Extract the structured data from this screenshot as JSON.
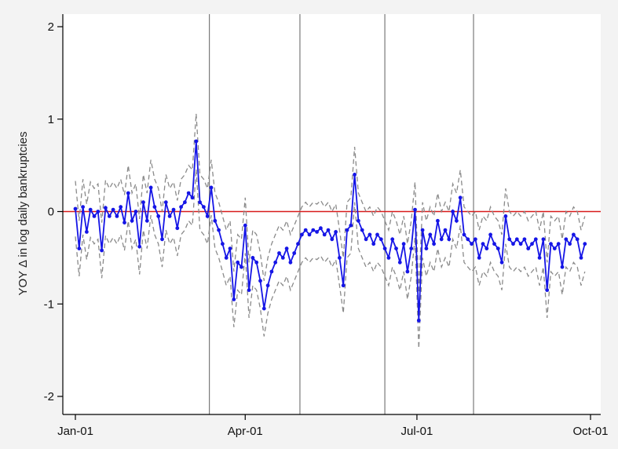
{
  "chart_data": {
    "type": "line",
    "title": "",
    "xlabel": "",
    "ylabel": "YOY Δ in log daily bankruptcies",
    "xlim": [
      "2001-01-01",
      "2001-10-01"
    ],
    "ylim": [
      -2.2,
      2.2
    ],
    "x_ticks": [
      {
        "date": "2001-01-01",
        "label": "Jan-01"
      },
      {
        "date": "2001-04-01",
        "label": "Apr-01"
      },
      {
        "date": "2001-07-01",
        "label": "Jul-01"
      },
      {
        "date": "2001-10-01",
        "label": "Oct-01"
      }
    ],
    "y_ticks": [
      {
        "value": 2,
        "label": "2"
      },
      {
        "value": 1,
        "label": "1"
      },
      {
        "value": 0,
        "label": "0"
      },
      {
        "value": -1,
        "label": "-1"
      },
      {
        "value": -2,
        "label": "-2"
      }
    ],
    "reference_line": {
      "value": 0,
      "color": "#d81b1b"
    },
    "vertical_lines": [
      "2001-03-13",
      "2001-04-30",
      "2001-06-14",
      "2001-07-31"
    ],
    "series": [
      {
        "color": "#1515e6",
        "style": "solid with circle markers",
        "points": [
          [
            "2001-01-01",
            0.03
          ],
          [
            "2001-01-03",
            -0.4
          ],
          [
            "2001-01-05",
            0.05
          ],
          [
            "2001-01-07",
            -0.22
          ],
          [
            "2001-01-09",
            0.02
          ],
          [
            "2001-01-11",
            -0.05
          ],
          [
            "2001-01-13",
            0.0
          ],
          [
            "2001-01-15",
            -0.42
          ],
          [
            "2001-01-17",
            0.04
          ],
          [
            "2001-01-19",
            -0.05
          ],
          [
            "2001-01-21",
            0.02
          ],
          [
            "2001-01-23",
            -0.05
          ],
          [
            "2001-01-25",
            0.05
          ],
          [
            "2001-01-27",
            -0.12
          ],
          [
            "2001-01-29",
            0.2
          ],
          [
            "2001-01-31",
            -0.1
          ],
          [
            "2001-02-02",
            0.0
          ],
          [
            "2001-02-04",
            -0.38
          ],
          [
            "2001-02-06",
            0.1
          ],
          [
            "2001-02-08",
            -0.1
          ],
          [
            "2001-02-10",
            0.26
          ],
          [
            "2001-02-12",
            0.05
          ],
          [
            "2001-02-14",
            -0.05
          ],
          [
            "2001-02-16",
            -0.3
          ],
          [
            "2001-02-18",
            0.1
          ],
          [
            "2001-02-20",
            -0.05
          ],
          [
            "2001-02-22",
            0.02
          ],
          [
            "2001-02-24",
            -0.18
          ],
          [
            "2001-02-26",
            0.05
          ],
          [
            "2001-02-28",
            0.1
          ],
          [
            "2001-03-02",
            0.2
          ],
          [
            "2001-03-04",
            0.15
          ],
          [
            "2001-03-06",
            0.76
          ],
          [
            "2001-03-08",
            0.1
          ],
          [
            "2001-03-10",
            0.05
          ],
          [
            "2001-03-12",
            -0.05
          ],
          [
            "2001-03-14",
            0.26
          ],
          [
            "2001-03-16",
            -0.1
          ],
          [
            "2001-03-18",
            -0.2
          ],
          [
            "2001-03-20",
            -0.35
          ],
          [
            "2001-03-22",
            -0.5
          ],
          [
            "2001-03-24",
            -0.4
          ],
          [
            "2001-03-26",
            -0.95
          ],
          [
            "2001-03-28",
            -0.55
          ],
          [
            "2001-03-30",
            -0.6
          ],
          [
            "2001-04-01",
            -0.15
          ],
          [
            "2001-04-03",
            -0.85
          ],
          [
            "2001-04-05",
            -0.5
          ],
          [
            "2001-04-07",
            -0.55
          ],
          [
            "2001-04-09",
            -0.75
          ],
          [
            "2001-04-11",
            -1.05
          ],
          [
            "2001-04-13",
            -0.8
          ],
          [
            "2001-04-15",
            -0.65
          ],
          [
            "2001-04-17",
            -0.55
          ],
          [
            "2001-04-19",
            -0.45
          ],
          [
            "2001-04-21",
            -0.5
          ],
          [
            "2001-04-23",
            -0.4
          ],
          [
            "2001-04-25",
            -0.55
          ],
          [
            "2001-04-27",
            -0.45
          ],
          [
            "2001-04-29",
            -0.35
          ],
          [
            "2001-05-01",
            -0.25
          ],
          [
            "2001-05-03",
            -0.2
          ],
          [
            "2001-05-05",
            -0.25
          ],
          [
            "2001-05-07",
            -0.2
          ],
          [
            "2001-05-09",
            -0.22
          ],
          [
            "2001-05-11",
            -0.18
          ],
          [
            "2001-05-13",
            -0.25
          ],
          [
            "2001-05-15",
            -0.2
          ],
          [
            "2001-05-17",
            -0.3
          ],
          [
            "2001-05-19",
            -0.22
          ],
          [
            "2001-05-21",
            -0.5
          ],
          [
            "2001-05-23",
            -0.8
          ],
          [
            "2001-05-25",
            -0.2
          ],
          [
            "2001-05-27",
            -0.15
          ],
          [
            "2001-05-29",
            0.4
          ],
          [
            "2001-05-31",
            -0.1
          ],
          [
            "2001-06-02",
            -0.2
          ],
          [
            "2001-06-04",
            -0.3
          ],
          [
            "2001-06-06",
            -0.25
          ],
          [
            "2001-06-08",
            -0.35
          ],
          [
            "2001-06-10",
            -0.25
          ],
          [
            "2001-06-12",
            -0.3
          ],
          [
            "2001-06-14",
            -0.4
          ],
          [
            "2001-06-16",
            -0.5
          ],
          [
            "2001-06-18",
            -0.3
          ],
          [
            "2001-06-20",
            -0.4
          ],
          [
            "2001-06-22",
            -0.55
          ],
          [
            "2001-06-24",
            -0.35
          ],
          [
            "2001-06-26",
            -0.65
          ],
          [
            "2001-06-28",
            -0.4
          ],
          [
            "2001-06-30",
            0.02
          ],
          [
            "2001-07-02",
            -1.18
          ],
          [
            "2001-07-04",
            -0.2
          ],
          [
            "2001-07-06",
            -0.4
          ],
          [
            "2001-07-08",
            -0.25
          ],
          [
            "2001-07-10",
            -0.35
          ],
          [
            "2001-07-12",
            -0.1
          ],
          [
            "2001-07-14",
            -0.3
          ],
          [
            "2001-07-16",
            -0.2
          ],
          [
            "2001-07-18",
            -0.3
          ],
          [
            "2001-07-20",
            0.0
          ],
          [
            "2001-07-22",
            -0.1
          ],
          [
            "2001-07-24",
            0.15
          ],
          [
            "2001-07-26",
            -0.25
          ],
          [
            "2001-07-28",
            -0.3
          ],
          [
            "2001-07-30",
            -0.35
          ],
          [
            "2001-08-01",
            -0.3
          ],
          [
            "2001-08-03",
            -0.5
          ],
          [
            "2001-08-05",
            -0.35
          ],
          [
            "2001-08-07",
            -0.4
          ],
          [
            "2001-08-09",
            -0.25
          ],
          [
            "2001-08-11",
            -0.35
          ],
          [
            "2001-08-13",
            -0.4
          ],
          [
            "2001-08-15",
            -0.55
          ],
          [
            "2001-08-17",
            -0.05
          ],
          [
            "2001-08-19",
            -0.3
          ],
          [
            "2001-08-21",
            -0.35
          ],
          [
            "2001-08-23",
            -0.3
          ],
          [
            "2001-08-25",
            -0.35
          ],
          [
            "2001-08-27",
            -0.3
          ],
          [
            "2001-08-29",
            -0.4
          ],
          [
            "2001-08-31",
            -0.35
          ],
          [
            "2001-09-02",
            -0.3
          ],
          [
            "2001-09-04",
            -0.5
          ],
          [
            "2001-09-06",
            -0.3
          ],
          [
            "2001-09-08",
            -0.85
          ],
          [
            "2001-09-10",
            -0.35
          ],
          [
            "2001-09-12",
            -0.4
          ],
          [
            "2001-09-14",
            -0.35
          ],
          [
            "2001-09-16",
            -0.6
          ],
          [
            "2001-09-18",
            -0.3
          ],
          [
            "2001-09-20",
            -0.35
          ],
          [
            "2001-09-22",
            -0.25
          ],
          [
            "2001-09-24",
            -0.3
          ],
          [
            "2001-09-26",
            -0.5
          ],
          [
            "2001-09-28",
            -0.35
          ]
        ]
      },
      {
        "color": "#8a8a8a",
        "style": "dashed",
        "values_offset_from_first_series": 0.3
      },
      {
        "color": "#8a8a8a",
        "style": "dashed",
        "values_offset_from_first_series": -0.3
      }
    ]
  },
  "colors": {
    "main_series": "#1515e6",
    "band_lines": "#8a8a8a",
    "zero_line": "#d81b1b",
    "vertical_lines": "#7a7a7a",
    "plot_background": "#ffffff",
    "outer_background": "#f3f3f3"
  }
}
